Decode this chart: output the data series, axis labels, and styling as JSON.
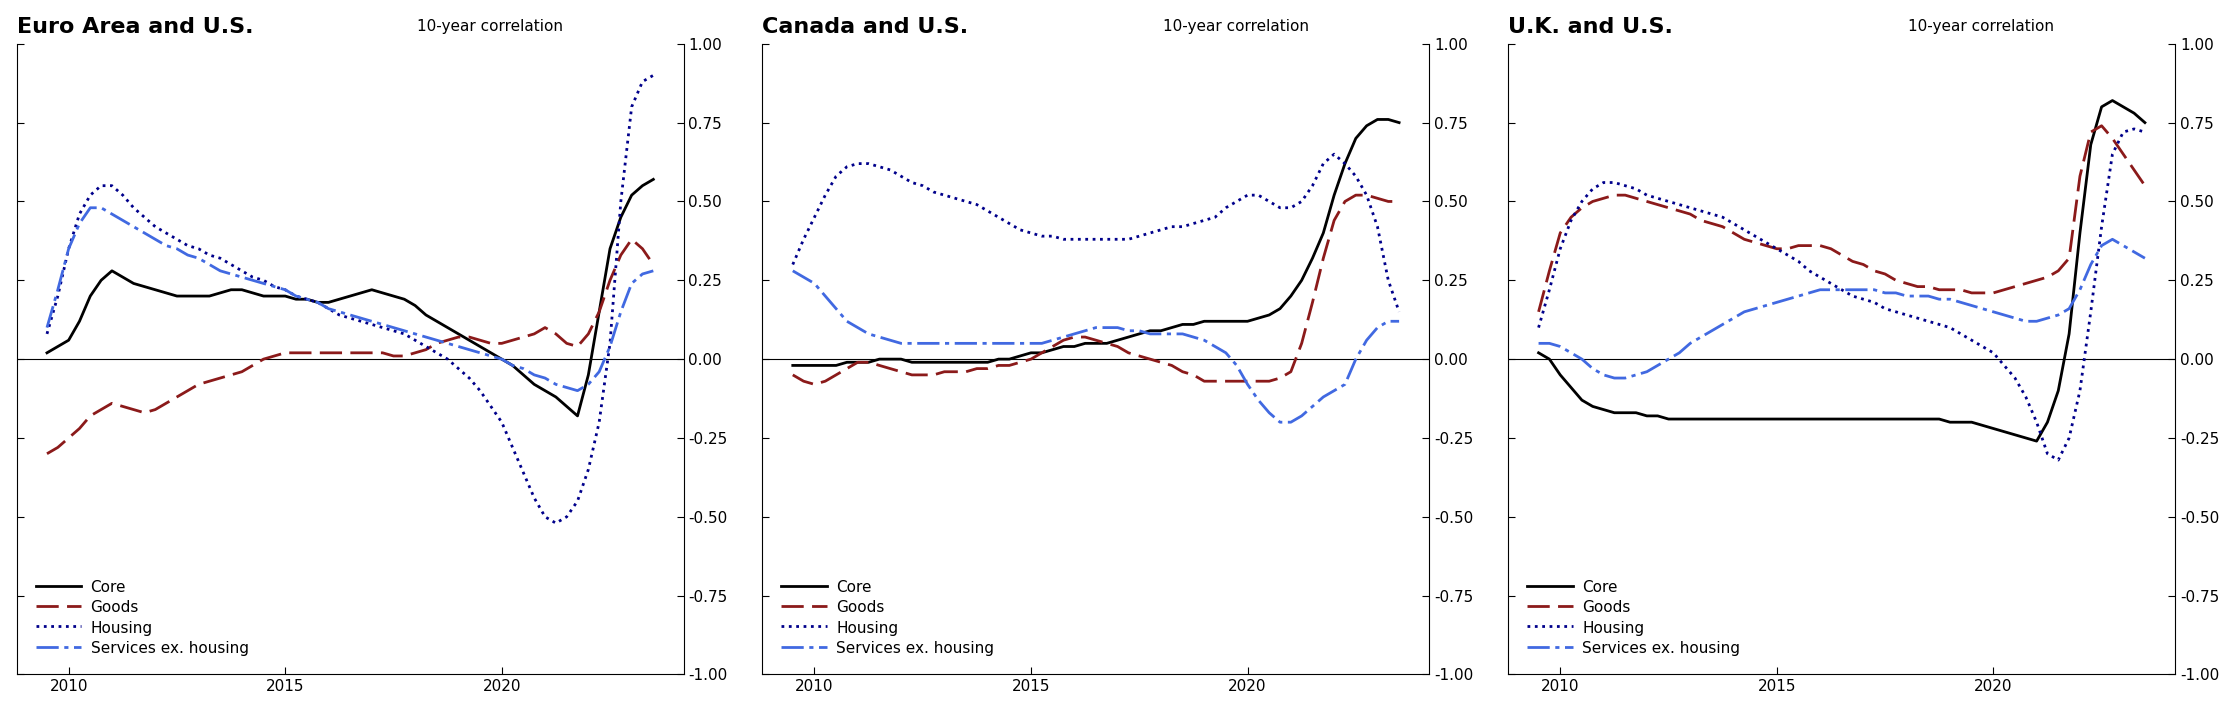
{
  "titles": [
    "Euro Area and U.S.",
    "Canada and U.S.",
    "U.K. and U.S."
  ],
  "ylabel": "10-year correlation",
  "ylim": [
    -1.0,
    1.0
  ],
  "yticks": [
    -1.0,
    -0.75,
    -0.5,
    -0.25,
    0.0,
    0.25,
    0.5,
    0.75,
    1.0
  ],
  "xlim_start": 2008.8,
  "xlim_end": 2024.2,
  "xticks": [
    2010,
    2015,
    2020
  ],
  "background_color": "#ffffff",
  "title_fontsize": 16,
  "label_fontsize": 11,
  "tick_fontsize": 11,
  "legend_fontsize": 11,
  "colors": {
    "core": "#000000",
    "goods": "#8B1A1A",
    "housing": "#00008B",
    "services": "#4169E1"
  },
  "goods_dashes": [
    8,
    3
  ],
  "housing_dots": [
    1,
    2.5
  ],
  "services_dashdot": [
    8,
    2,
    1.5,
    2
  ],
  "linewidths": {
    "core": 2.0,
    "goods": 2.0,
    "housing": 2.0,
    "services": 2.0
  },
  "legend_labels": [
    "Core",
    "Goods",
    "Housing",
    "Services ex. housing"
  ],
  "panels": {
    "euro": {
      "years": [
        2009.5,
        2009.75,
        2010.0,
        2010.25,
        2010.5,
        2010.75,
        2011.0,
        2011.25,
        2011.5,
        2011.75,
        2012.0,
        2012.25,
        2012.5,
        2012.75,
        2013.0,
        2013.25,
        2013.5,
        2013.75,
        2014.0,
        2014.25,
        2014.5,
        2014.75,
        2015.0,
        2015.25,
        2015.5,
        2015.75,
        2016.0,
        2016.25,
        2016.5,
        2016.75,
        2017.0,
        2017.25,
        2017.5,
        2017.75,
        2018.0,
        2018.25,
        2018.5,
        2018.75,
        2019.0,
        2019.25,
        2019.5,
        2019.75,
        2020.0,
        2020.25,
        2020.5,
        2020.75,
        2021.0,
        2021.25,
        2021.5,
        2021.75,
        2022.0,
        2022.25,
        2022.5,
        2022.75,
        2023.0,
        2023.25,
        2023.5
      ],
      "core": [
        0.02,
        0.04,
        0.06,
        0.12,
        0.2,
        0.25,
        0.28,
        0.26,
        0.24,
        0.23,
        0.22,
        0.21,
        0.2,
        0.2,
        0.2,
        0.2,
        0.21,
        0.22,
        0.22,
        0.21,
        0.2,
        0.2,
        0.2,
        0.19,
        0.19,
        0.18,
        0.18,
        0.19,
        0.2,
        0.21,
        0.22,
        0.21,
        0.2,
        0.19,
        0.17,
        0.14,
        0.12,
        0.1,
        0.08,
        0.06,
        0.04,
        0.02,
        0.0,
        -0.02,
        -0.05,
        -0.08,
        -0.1,
        -0.12,
        -0.15,
        -0.18,
        -0.05,
        0.15,
        0.35,
        0.45,
        0.52,
        0.55,
        0.57
      ],
      "goods": [
        -0.3,
        -0.28,
        -0.25,
        -0.22,
        -0.18,
        -0.16,
        -0.14,
        -0.15,
        -0.16,
        -0.17,
        -0.16,
        -0.14,
        -0.12,
        -0.1,
        -0.08,
        -0.07,
        -0.06,
        -0.05,
        -0.04,
        -0.02,
        0.0,
        0.01,
        0.02,
        0.02,
        0.02,
        0.02,
        0.02,
        0.02,
        0.02,
        0.02,
        0.02,
        0.02,
        0.01,
        0.01,
        0.02,
        0.03,
        0.05,
        0.06,
        0.07,
        0.07,
        0.06,
        0.05,
        0.05,
        0.06,
        0.07,
        0.08,
        0.1,
        0.08,
        0.05,
        0.04,
        0.08,
        0.15,
        0.25,
        0.33,
        0.38,
        0.35,
        0.3
      ],
      "housing": [
        0.08,
        0.2,
        0.35,
        0.46,
        0.52,
        0.55,
        0.55,
        0.52,
        0.48,
        0.45,
        0.42,
        0.4,
        0.38,
        0.36,
        0.35,
        0.33,
        0.32,
        0.3,
        0.28,
        0.26,
        0.25,
        0.23,
        0.22,
        0.2,
        0.19,
        0.18,
        0.16,
        0.14,
        0.13,
        0.12,
        0.11,
        0.1,
        0.09,
        0.08,
        0.06,
        0.04,
        0.02,
        0.0,
        -0.03,
        -0.06,
        -0.1,
        -0.15,
        -0.2,
        -0.28,
        -0.36,
        -0.44,
        -0.5,
        -0.52,
        -0.5,
        -0.45,
        -0.35,
        -0.2,
        0.05,
        0.5,
        0.8,
        0.88,
        0.9
      ],
      "services": [
        0.1,
        0.22,
        0.35,
        0.43,
        0.48,
        0.48,
        0.46,
        0.44,
        0.42,
        0.4,
        0.38,
        0.36,
        0.35,
        0.33,
        0.32,
        0.3,
        0.28,
        0.27,
        0.26,
        0.25,
        0.24,
        0.23,
        0.22,
        0.2,
        0.19,
        0.18,
        0.16,
        0.15,
        0.14,
        0.13,
        0.12,
        0.11,
        0.1,
        0.09,
        0.08,
        0.07,
        0.06,
        0.05,
        0.04,
        0.03,
        0.02,
        0.01,
        0.0,
        -0.02,
        -0.03,
        -0.05,
        -0.06,
        -0.08,
        -0.09,
        -0.1,
        -0.08,
        -0.04,
        0.04,
        0.15,
        0.24,
        0.27,
        0.28
      ]
    },
    "canada": {
      "years": [
        2009.5,
        2009.75,
        2010.0,
        2010.25,
        2010.5,
        2010.75,
        2011.0,
        2011.25,
        2011.5,
        2011.75,
        2012.0,
        2012.25,
        2012.5,
        2012.75,
        2013.0,
        2013.25,
        2013.5,
        2013.75,
        2014.0,
        2014.25,
        2014.5,
        2014.75,
        2015.0,
        2015.25,
        2015.5,
        2015.75,
        2016.0,
        2016.25,
        2016.5,
        2016.75,
        2017.0,
        2017.25,
        2017.5,
        2017.75,
        2018.0,
        2018.25,
        2018.5,
        2018.75,
        2019.0,
        2019.25,
        2019.5,
        2019.75,
        2020.0,
        2020.25,
        2020.5,
        2020.75,
        2021.0,
        2021.25,
        2021.5,
        2021.75,
        2022.0,
        2022.25,
        2022.5,
        2022.75,
        2023.0,
        2023.25,
        2023.5
      ],
      "core": [
        -0.02,
        -0.02,
        -0.02,
        -0.02,
        -0.02,
        -0.01,
        -0.01,
        -0.01,
        0.0,
        0.0,
        0.0,
        -0.01,
        -0.01,
        -0.01,
        -0.01,
        -0.01,
        -0.01,
        -0.01,
        -0.01,
        0.0,
        0.0,
        0.01,
        0.02,
        0.02,
        0.03,
        0.04,
        0.04,
        0.05,
        0.05,
        0.05,
        0.06,
        0.07,
        0.08,
        0.09,
        0.09,
        0.1,
        0.11,
        0.11,
        0.12,
        0.12,
        0.12,
        0.12,
        0.12,
        0.13,
        0.14,
        0.16,
        0.2,
        0.25,
        0.32,
        0.4,
        0.52,
        0.62,
        0.7,
        0.74,
        0.76,
        0.76,
        0.75
      ],
      "goods": [
        -0.05,
        -0.07,
        -0.08,
        -0.07,
        -0.05,
        -0.03,
        -0.01,
        -0.01,
        -0.02,
        -0.03,
        -0.04,
        -0.05,
        -0.05,
        -0.05,
        -0.04,
        -0.04,
        -0.04,
        -0.03,
        -0.03,
        -0.02,
        -0.02,
        -0.01,
        0.0,
        0.02,
        0.04,
        0.06,
        0.07,
        0.07,
        0.06,
        0.05,
        0.04,
        0.02,
        0.01,
        0.0,
        -0.01,
        -0.02,
        -0.04,
        -0.05,
        -0.07,
        -0.07,
        -0.07,
        -0.07,
        -0.07,
        -0.07,
        -0.07,
        -0.06,
        -0.04,
        0.05,
        0.18,
        0.32,
        0.44,
        0.5,
        0.52,
        0.52,
        0.51,
        0.5,
        0.5
      ],
      "housing": [
        0.3,
        0.38,
        0.45,
        0.52,
        0.58,
        0.61,
        0.62,
        0.62,
        0.61,
        0.6,
        0.58,
        0.56,
        0.55,
        0.53,
        0.52,
        0.51,
        0.5,
        0.49,
        0.47,
        0.45,
        0.43,
        0.41,
        0.4,
        0.39,
        0.39,
        0.38,
        0.38,
        0.38,
        0.38,
        0.38,
        0.38,
        0.38,
        0.39,
        0.4,
        0.41,
        0.42,
        0.42,
        0.43,
        0.44,
        0.45,
        0.48,
        0.5,
        0.52,
        0.52,
        0.5,
        0.48,
        0.48,
        0.5,
        0.55,
        0.62,
        0.65,
        0.62,
        0.58,
        0.52,
        0.42,
        0.25,
        0.15
      ],
      "services": [
        0.28,
        0.26,
        0.24,
        0.2,
        0.16,
        0.12,
        0.1,
        0.08,
        0.07,
        0.06,
        0.05,
        0.05,
        0.05,
        0.05,
        0.05,
        0.05,
        0.05,
        0.05,
        0.05,
        0.05,
        0.05,
        0.05,
        0.05,
        0.05,
        0.06,
        0.07,
        0.08,
        0.09,
        0.1,
        0.1,
        0.1,
        0.09,
        0.09,
        0.08,
        0.08,
        0.08,
        0.08,
        0.07,
        0.06,
        0.04,
        0.02,
        -0.02,
        -0.08,
        -0.13,
        -0.17,
        -0.2,
        -0.2,
        -0.18,
        -0.15,
        -0.12,
        -0.1,
        -0.08,
        0.0,
        0.06,
        0.1,
        0.12,
        0.12
      ]
    },
    "uk": {
      "years": [
        2009.5,
        2009.75,
        2010.0,
        2010.25,
        2010.5,
        2010.75,
        2011.0,
        2011.25,
        2011.5,
        2011.75,
        2012.0,
        2012.25,
        2012.5,
        2012.75,
        2013.0,
        2013.25,
        2013.5,
        2013.75,
        2014.0,
        2014.25,
        2014.5,
        2014.75,
        2015.0,
        2015.25,
        2015.5,
        2015.75,
        2016.0,
        2016.25,
        2016.5,
        2016.75,
        2017.0,
        2017.25,
        2017.5,
        2017.75,
        2018.0,
        2018.25,
        2018.5,
        2018.75,
        2019.0,
        2019.25,
        2019.5,
        2019.75,
        2020.0,
        2020.25,
        2020.5,
        2020.75,
        2021.0,
        2021.25,
        2021.5,
        2021.75,
        2022.0,
        2022.25,
        2022.5,
        2022.75,
        2023.0,
        2023.25,
        2023.5
      ],
      "core": [
        0.02,
        0.0,
        -0.05,
        -0.09,
        -0.13,
        -0.15,
        -0.16,
        -0.17,
        -0.17,
        -0.17,
        -0.18,
        -0.18,
        -0.19,
        -0.19,
        -0.19,
        -0.19,
        -0.19,
        -0.19,
        -0.19,
        -0.19,
        -0.19,
        -0.19,
        -0.19,
        -0.19,
        -0.19,
        -0.19,
        -0.19,
        -0.19,
        -0.19,
        -0.19,
        -0.19,
        -0.19,
        -0.19,
        -0.19,
        -0.19,
        -0.19,
        -0.19,
        -0.19,
        -0.2,
        -0.2,
        -0.2,
        -0.21,
        -0.22,
        -0.23,
        -0.24,
        -0.25,
        -0.26,
        -0.2,
        -0.1,
        0.08,
        0.4,
        0.68,
        0.8,
        0.82,
        0.8,
        0.78,
        0.75
      ],
      "goods": [
        0.15,
        0.28,
        0.4,
        0.45,
        0.48,
        0.5,
        0.51,
        0.52,
        0.52,
        0.51,
        0.5,
        0.49,
        0.48,
        0.47,
        0.46,
        0.44,
        0.43,
        0.42,
        0.4,
        0.38,
        0.37,
        0.36,
        0.35,
        0.35,
        0.36,
        0.36,
        0.36,
        0.35,
        0.33,
        0.31,
        0.3,
        0.28,
        0.27,
        0.25,
        0.24,
        0.23,
        0.23,
        0.22,
        0.22,
        0.22,
        0.21,
        0.21,
        0.21,
        0.22,
        0.23,
        0.24,
        0.25,
        0.26,
        0.28,
        0.32,
        0.58,
        0.72,
        0.74,
        0.7,
        0.65,
        0.6,
        0.55
      ],
      "housing": [
        0.1,
        0.22,
        0.35,
        0.44,
        0.5,
        0.54,
        0.56,
        0.56,
        0.55,
        0.54,
        0.52,
        0.51,
        0.5,
        0.49,
        0.48,
        0.47,
        0.46,
        0.45,
        0.43,
        0.41,
        0.39,
        0.37,
        0.35,
        0.33,
        0.31,
        0.28,
        0.26,
        0.24,
        0.22,
        0.2,
        0.19,
        0.18,
        0.16,
        0.15,
        0.14,
        0.13,
        0.12,
        0.11,
        0.1,
        0.08,
        0.06,
        0.04,
        0.02,
        -0.02,
        -0.06,
        -0.12,
        -0.2,
        -0.3,
        -0.32,
        -0.25,
        -0.1,
        0.15,
        0.42,
        0.65,
        0.72,
        0.73,
        0.72
      ],
      "services": [
        0.05,
        0.05,
        0.04,
        0.02,
        0.0,
        -0.03,
        -0.05,
        -0.06,
        -0.06,
        -0.05,
        -0.04,
        -0.02,
        0.0,
        0.02,
        0.05,
        0.07,
        0.09,
        0.11,
        0.13,
        0.15,
        0.16,
        0.17,
        0.18,
        0.19,
        0.2,
        0.21,
        0.22,
        0.22,
        0.22,
        0.22,
        0.22,
        0.22,
        0.21,
        0.21,
        0.2,
        0.2,
        0.2,
        0.19,
        0.19,
        0.18,
        0.17,
        0.16,
        0.15,
        0.14,
        0.13,
        0.12,
        0.12,
        0.13,
        0.14,
        0.16,
        0.22,
        0.3,
        0.36,
        0.38,
        0.36,
        0.34,
        0.32
      ]
    }
  }
}
